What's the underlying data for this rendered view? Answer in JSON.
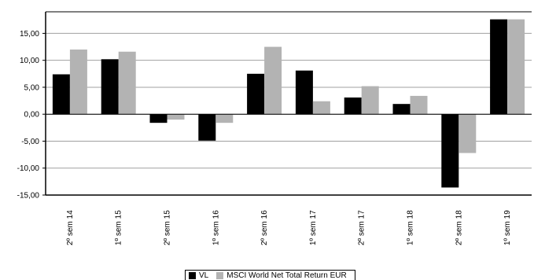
{
  "chart_data": {
    "type": "bar",
    "title": "",
    "xlabel": "",
    "ylabel": "",
    "categories": [
      "2º sem 14",
      "1º sem 15",
      "2º sem 15",
      "1º sem 16",
      "2º sem 16",
      "1º sem 17",
      "2º sem 17",
      "1º sem 18",
      "2º sem 18",
      "1º sem 19"
    ],
    "series": [
      {
        "name": "VL",
        "color": "#000000",
        "values": [
          7.4,
          10.2,
          -1.6,
          -4.9,
          7.5,
          8.1,
          3.1,
          1.9,
          -13.6,
          17.6
        ]
      },
      {
        "name": "MSCI World Net Total Return EUR",
        "color": "#b3b3b3",
        "values": [
          12.0,
          11.6,
          -1.0,
          -1.6,
          12.5,
          2.4,
          5.2,
          3.4,
          -7.2,
          17.6
        ]
      }
    ],
    "yticks": [
      "15,00",
      "10,00",
      "5,00",
      "0,00",
      "-5,00",
      "-10,00",
      "-15,00"
    ],
    "ylim": [
      -15,
      19
    ],
    "grid": true,
    "legend": "bottom-center"
  }
}
